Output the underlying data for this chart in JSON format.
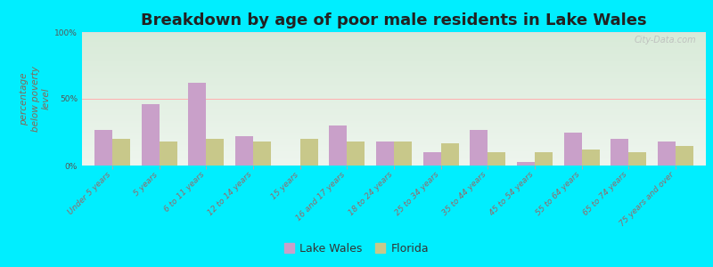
{
  "title": "Breakdown by age of poor male residents in Lake Wales",
  "ylabel": "percentage\nbelow poverty\nlevel",
  "categories": [
    "Under 5 years",
    "5 years",
    "6 to 11 years",
    "12 to 14 years",
    "15 years",
    "16 and 17 years",
    "18 to 24 years",
    "25 to 34 years",
    "35 to 44 years",
    "45 to 54 years",
    "55 to 64 years",
    "65 to 74 years",
    "75 years and over"
  ],
  "lake_wales": [
    27,
    46,
    62,
    22,
    0,
    30,
    18,
    10,
    27,
    3,
    25,
    20,
    18
  ],
  "florida": [
    20,
    18,
    20,
    18,
    20,
    18,
    18,
    17,
    10,
    10,
    12,
    10,
    15
  ],
  "lake_wales_color": "#c9a0c9",
  "florida_color": "#c8c88a",
  "outer_bg": "#00eeff",
  "plot_bg_top": "#ddeedd",
  "plot_bg_bottom": "#eef5ee",
  "yticks": [
    0,
    50,
    100
  ],
  "ytick_labels": [
    "0%",
    "50%",
    "100%"
  ],
  "ylim": [
    0,
    100
  ],
  "bar_width": 0.38,
  "title_fontsize": 13,
  "axis_label_fontsize": 7.5,
  "tick_label_fontsize": 6.5,
  "legend_fontsize": 9,
  "watermark": "City-Data.com"
}
